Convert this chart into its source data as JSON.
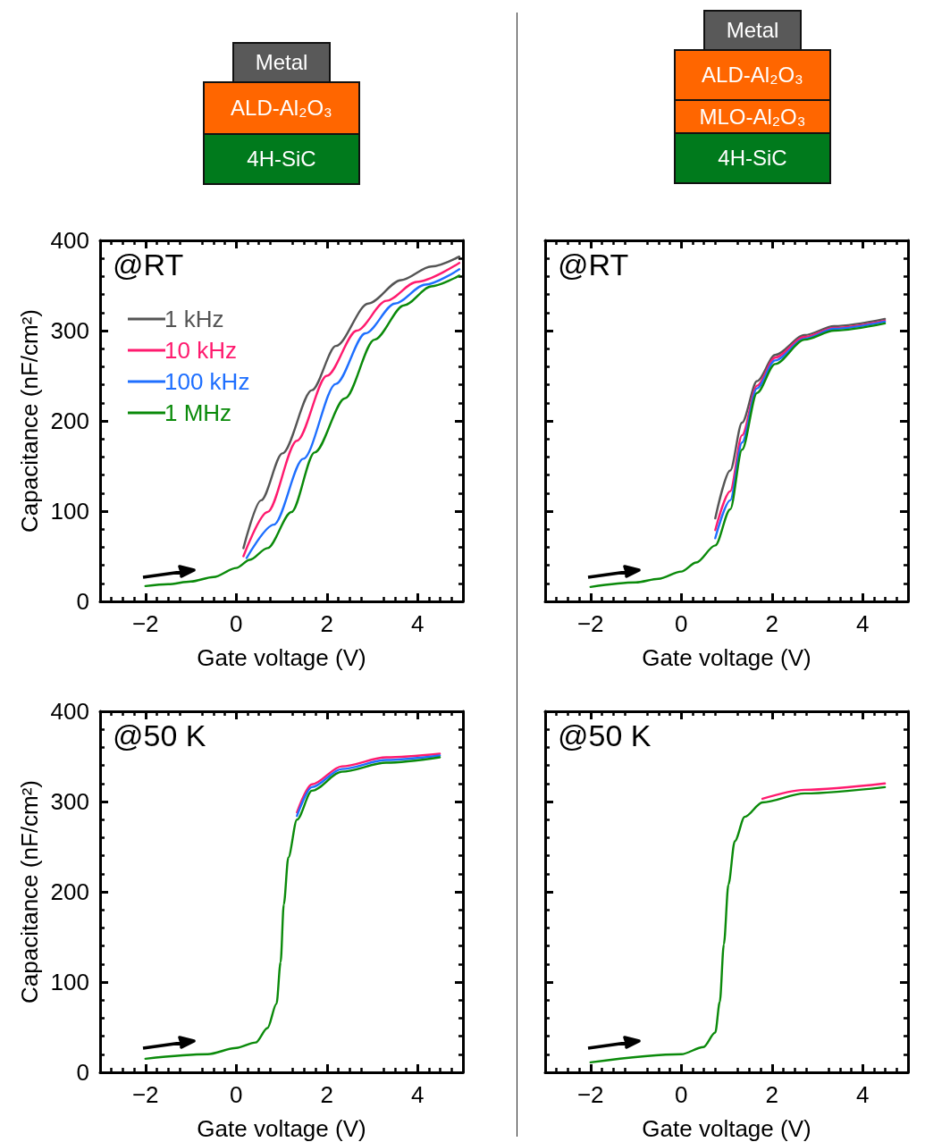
{
  "chart_data": [
    {
      "type": "line",
      "annotations": [
        "@RT",
        "Metal",
        "ALD-Al₂O₃",
        "4H-SiC"
      ],
      "xlabel": "Gate voltage (V)",
      "ylabel": "Capacitance (nF/cm²)",
      "xlim": [
        -3,
        5
      ],
      "ylim": [
        0,
        400
      ],
      "xticks": [
        -2,
        0,
        2,
        4
      ],
      "yticks": [
        0,
        100,
        200,
        300,
        400
      ],
      "legend": "top left",
      "series": [
        {
          "name": "1 kHz",
          "color": "#555555",
          "x": [
            0.16,
            0.55,
            1.02,
            1.67,
            2.2,
            2.91,
            3.64,
            4.3,
            4.92
          ],
          "values": [
            59,
            112,
            164,
            234,
            283,
            330,
            356,
            371,
            382
          ]
        },
        {
          "name": "10 kHz",
          "color": "#ff1a6e",
          "x": [
            0.16,
            0.69,
            1.34,
            2.0,
            2.66,
            3.31,
            3.98,
            4.92
          ],
          "values": [
            50,
            99,
            178,
            250,
            300,
            333,
            354,
            375
          ]
        },
        {
          "name": "100 kHz",
          "color": "#1e6fff",
          "x": [
            0.23,
            0.83,
            1.48,
            2.2,
            2.85,
            3.5,
            4.17,
            4.92
          ],
          "values": [
            48,
            85,
            158,
            241,
            297,
            330,
            351,
            368
          ]
        },
        {
          "name": "1 MHz",
          "color": "#0a8a0a",
          "x": [
            -2,
            -1.5,
            -1,
            -0.5,
            0,
            0.3,
            0.69,
            1.22,
            1.73,
            2.4,
            3.05,
            3.7,
            4.3,
            4.92
          ],
          "values": [
            17,
            19,
            22,
            27,
            37,
            46,
            59,
            99,
            165,
            225,
            290,
            328,
            349,
            361
          ]
        }
      ]
    },
    {
      "type": "line",
      "annotations": [
        "@RT",
        "Metal",
        "ALD-Al₂O₃",
        "MLO-Al₂O₃",
        "4H-SiC"
      ],
      "xlabel": "Gate voltage (V)",
      "xlim": [
        -3,
        5
      ],
      "ylim": [
        0,
        400
      ],
      "xticks": [
        -2,
        0,
        2,
        4
      ],
      "yticks": [
        0,
        100,
        200,
        300,
        400
      ],
      "tick_labels": "x",
      "series": [
        {
          "color": "#555555",
          "x": [
            0.75,
            1.08,
            1.34,
            1.67,
            2.07,
            2.72,
            3.37,
            4.49
          ],
          "values": [
            92,
            145,
            198,
            244,
            273,
            295,
            305,
            313
          ]
        },
        {
          "color": "#ff1a6e",
          "x": [
            0.75,
            1.08,
            1.34,
            1.67,
            2.07,
            2.72,
            3.37,
            4.49
          ],
          "values": [
            79,
            122,
            184,
            239,
            270,
            293,
            303,
            311
          ]
        },
        {
          "color": "#1e6fff",
          "x": [
            0.75,
            1.08,
            1.34,
            1.67,
            2.07,
            2.72,
            3.37,
            4.49
          ],
          "values": [
            70,
            112,
            176,
            236,
            267,
            291,
            302,
            310
          ]
        },
        {
          "color": "#0a8a0a",
          "x": [
            -2,
            -1,
            -0.5,
            0,
            0.33,
            0.75,
            1.08,
            1.34,
            1.67,
            2.07,
            2.72,
            3.37,
            4.49
          ],
          "values": [
            16,
            21,
            25,
            33,
            43,
            62,
            102,
            168,
            231,
            263,
            290,
            300,
            308
          ]
        }
      ]
    },
    {
      "type": "line",
      "annotations": [
        "@50 K"
      ],
      "xlabel": "Gate voltage (V)",
      "ylabel": "Capacitance (nF/cm²)",
      "xlim": [
        -3,
        5
      ],
      "ylim": [
        0,
        400
      ],
      "xticks": [
        -2,
        0,
        2,
        4
      ],
      "yticks": [
        0,
        100,
        200,
        300,
        400
      ],
      "series": [
        {
          "color": "#ff1a6e",
          "x": [
            1.34,
            1.67,
            2.33,
            3.31,
            4.49
          ],
          "values": [
            288,
            319,
            339,
            349,
            353
          ]
        },
        {
          "color": "#1e6fff",
          "x": [
            1.34,
            1.67,
            2.33,
            3.31,
            4.49
          ],
          "values": [
            284,
            316,
            336,
            346,
            351
          ]
        },
        {
          "color": "#0a8a0a",
          "x": [
            -2,
            -0.63,
            0,
            0.43,
            0.69,
            0.89,
            0.98,
            1.05,
            1.15,
            1.34,
            1.67,
            2.33,
            3.31,
            4.49
          ],
          "values": [
            15,
            20,
            27,
            33,
            49,
            76,
            122,
            186,
            238,
            280,
            312,
            333,
            343,
            349
          ]
        }
      ]
    },
    {
      "type": "line",
      "annotations": [
        "@50 K"
      ],
      "xlabel": "Gate voltage (V)",
      "xlim": [
        -3,
        5
      ],
      "ylim": [
        0,
        400
      ],
      "xticks": [
        -2,
        0,
        2,
        4
      ],
      "yticks": [
        0,
        100,
        200,
        300,
        400
      ],
      "tick_labels": "x",
      "series": [
        {
          "color": "#ff1a6e",
          "x": [
            1.79,
            2.72,
            4.49
          ],
          "values": [
            303,
            313,
            320
          ]
        },
        {
          "color": "#0a8a0a",
          "x": [
            -2,
            0,
            0.49,
            0.75,
            0.85,
            0.94,
            1.04,
            1.18,
            1.4,
            1.79,
            2.72,
            4.49
          ],
          "values": [
            11,
            20,
            28,
            44,
            78,
            142,
            208,
            256,
            283,
            299,
            309,
            316
          ]
        }
      ]
    }
  ]
}
